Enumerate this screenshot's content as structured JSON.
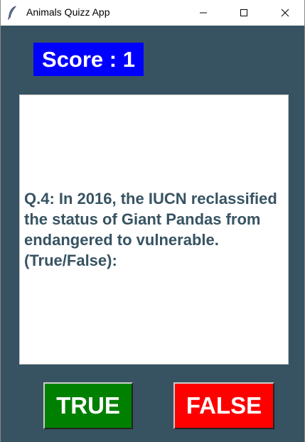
{
  "window": {
    "title": "Animals Quizz App",
    "icon": "feather-icon"
  },
  "score": {
    "text": "Score : 1"
  },
  "question": {
    "text": "Q.4: In 2016, the IUCN reclassified the status of Giant Pandas from endangered to vulnerable. (True/False):"
  },
  "buttons": {
    "true_label": "TRUE",
    "false_label": "FALSE"
  },
  "colors": {
    "background": "#375362",
    "score_bg": "#0000ff",
    "true_bg": "#008000",
    "false_bg": "#ff0000",
    "question_text": "#375362"
  }
}
